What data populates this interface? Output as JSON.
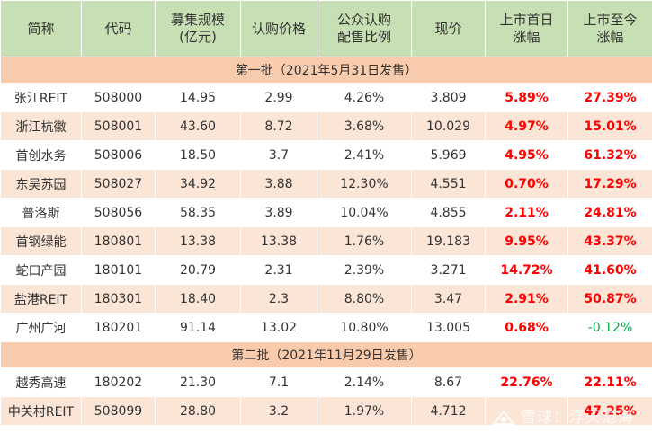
{
  "headers": [
    "简称",
    "代码",
    "募集规模\n(亿元)",
    "认购价格",
    "公众认购\n配售比例",
    "现价",
    "上市首日\n涨幅",
    "上市至今\n涨幅"
  ],
  "sections": [
    {
      "title": "第一批（2021年5月31日发售）",
      "rows": [
        {
          "name": "张江REIT",
          "code": "508000",
          "size": "14.95",
          "price": "2.99",
          "ratio": "4.26%",
          "current": "3.809",
          "day1": "5.89%",
          "total": "27.39%",
          "total_dir": "up"
        },
        {
          "name": "浙江杭徽",
          "code": "508001",
          "size": "43.60",
          "price": "8.72",
          "ratio": "3.68%",
          "current": "10.029",
          "day1": "4.97%",
          "total": "15.01%",
          "total_dir": "up"
        },
        {
          "name": "首创水务",
          "code": "508006",
          "size": "18.50",
          "price": "3.7",
          "ratio": "2.41%",
          "current": "5.969",
          "day1": "4.95%",
          "total": "61.32%",
          "total_dir": "up"
        },
        {
          "name": "东吴苏园",
          "code": "508027",
          "size": "34.92",
          "price": "3.88",
          "ratio": "12.30%",
          "current": "4.551",
          "day1": "0.70%",
          "total": "17.29%",
          "total_dir": "up"
        },
        {
          "name": "普洛斯",
          "code": "508056",
          "size": "58.35",
          "price": "3.89",
          "ratio": "10.04%",
          "current": "4.855",
          "day1": "2.11%",
          "total": "24.81%",
          "total_dir": "up"
        },
        {
          "name": "首钢绿能",
          "code": "180801",
          "size": "13.38",
          "price": "13.38",
          "ratio": "1.76%",
          "current": "19.183",
          "day1": "9.95%",
          "total": "43.37%",
          "total_dir": "up"
        },
        {
          "name": "蛇口产园",
          "code": "180101",
          "size": "20.79",
          "price": "2.31",
          "ratio": "2.39%",
          "current": "3.271",
          "day1": "14.72%",
          "total": "41.60%",
          "total_dir": "up"
        },
        {
          "name": "盐港REIT",
          "code": "180301",
          "size": "18.40",
          "price": "2.3",
          "ratio": "8.80%",
          "current": "3.47",
          "day1": "2.91%",
          "total": "50.87%",
          "total_dir": "up"
        },
        {
          "name": "广州广河",
          "code": "180201",
          "size": "91.14",
          "price": "13.02",
          "ratio": "10.80%",
          "current": "13.005",
          "day1": "0.68%",
          "total": "-0.12%",
          "total_dir": "down"
        }
      ]
    },
    {
      "title": "第二批（2021年11月29日发售）",
      "rows": [
        {
          "name": "越秀高速",
          "code": "180202",
          "size": "21.30",
          "price": "7.1",
          "ratio": "2.14%",
          "current": "8.67",
          "day1": "22.76%",
          "total": "22.11%",
          "total_dir": "up"
        },
        {
          "name": "中关村REIT",
          "code": "508099",
          "size": "28.80",
          "price": "3.2",
          "ratio": "1.97%",
          "current": "4.712",
          "day1": "",
          "total": "47.25%",
          "total_dir": "up"
        }
      ]
    }
  ],
  "watermark": "雪球：浮天沧海",
  "colors": {
    "header_bg": "#c6e0b4",
    "section_bg": "#f8cbad",
    "stripe_bg": "#fbe5d6",
    "up": "#ff0000",
    "down": "#00b050"
  }
}
